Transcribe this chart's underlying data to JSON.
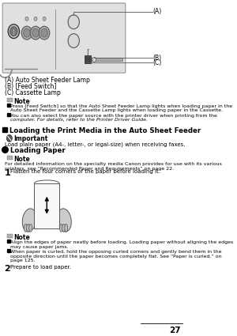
{
  "page_number": "27",
  "bg_color": "#ffffff",
  "label_A": "(A)",
  "label_B": "(B)",
  "label_C": "(C)",
  "caption_A": "(A) Auto Sheet Feeder Lamp",
  "caption_B": "(B) [Feed Switch]",
  "caption_C": "(C) Cassette Lamp",
  "note1_title": "Note",
  "note1_lines": [
    "Press [Feed Switch] so that the Auto Sheet Feeder Lamp lights when loading paper in the",
    "Auto Sheet Feeder and the Cassette Lamp lights when loading paper in the Cassette.",
    "You can also select the paper source with the printer driver when printing from the",
    "computer. For details, refer to the Printer Driver Guide."
  ],
  "section_title": "Loading the Print Media in the Auto Sheet Feeder",
  "important_title": "Important",
  "important_text": "Load plain paper (A4-, letter-, or legal-size) when receiving faxes.",
  "subsection_title": "Loading Paper",
  "note2_title": "Note",
  "note2_line1": "For detailed information on the specialty media Canon provides for use with its various",
  "note2_line2": "printers, see “Recommended Paper and Requirements” on page 22.",
  "step1_num": "1",
  "step1_text": "Flatten the four corners of the paper before loading it.",
  "note3_title": "Note",
  "note3_lines": [
    "Align the edges of paper neatly before loading. Loading paper without aligning the edges",
    "may cause paper jams.",
    "When paper is curled, hold the opposing curled corners and gently bend them in the",
    "opposite direction until the paper becomes completely flat. See “Paper is curled.” on",
    "page 125."
  ],
  "step2_num": "2",
  "step2_text": "Prepare to load paper."
}
